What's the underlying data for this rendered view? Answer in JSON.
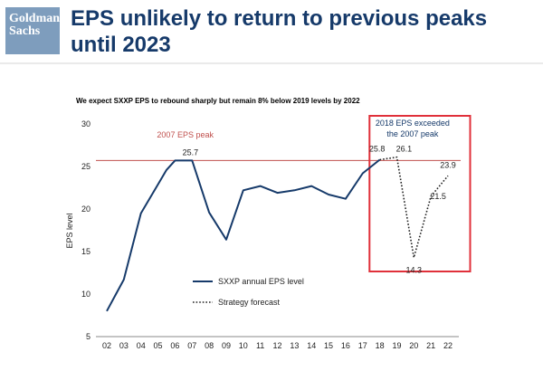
{
  "header": {
    "logo_line1": "Goldman",
    "logo_line2": "Sachs",
    "title": "EPS unlikely to return to previous peaks until 2023"
  },
  "chart_data": {
    "type": "line",
    "title": "We expect SXXP EPS to rebound sharply but remain 8% below 2019 levels by 2022",
    "ylabel": "EPS level",
    "xlabel": "",
    "ylim": [
      5,
      30
    ],
    "yticks": [
      5,
      10,
      15,
      20,
      25,
      30
    ],
    "x": [
      "02",
      "03",
      "04",
      "05",
      "06",
      "07",
      "08",
      "09",
      "10",
      "11",
      "12",
      "13",
      "14",
      "15",
      "16",
      "17",
      "18",
      "19",
      "20",
      "21",
      "22"
    ],
    "series": [
      {
        "name": "SXXP annual EPS level",
        "style": "solid",
        "color": "#163a6a",
        "points": [
          {
            "x": 2002,
            "y": 8.0
          },
          {
            "x": 2003,
            "y": 11.7
          },
          {
            "x": 2004,
            "y": 19.5
          },
          {
            "x": 2005,
            "y": 22.9
          },
          {
            "x": 2005.5,
            "y": 24.6
          },
          {
            "x": 2006,
            "y": 25.7
          },
          {
            "x": 2007,
            "y": 25.7
          },
          {
            "x": 2008,
            "y": 19.6
          },
          {
            "x": 2009,
            "y": 16.4
          },
          {
            "x": 2010,
            "y": 22.2
          },
          {
            "x": 2011,
            "y": 22.7
          },
          {
            "x": 2012,
            "y": 21.9
          },
          {
            "x": 2013,
            "y": 22.2
          },
          {
            "x": 2014,
            "y": 22.7
          },
          {
            "x": 2015,
            "y": 21.7
          },
          {
            "x": 2016,
            "y": 21.2
          },
          {
            "x": 2017,
            "y": 24.2
          },
          {
            "x": 2018,
            "y": 25.8
          }
        ]
      },
      {
        "name": "Strategy forecast",
        "style": "dotted",
        "color": "#222222",
        "points": [
          {
            "x": 2018,
            "y": 25.8
          },
          {
            "x": 2019,
            "y": 26.1
          },
          {
            "x": 2020,
            "y": 14.3
          },
          {
            "x": 2021,
            "y": 21.5
          },
          {
            "x": 2022,
            "y": 23.9
          }
        ]
      }
    ],
    "reference_line": {
      "y": 25.7,
      "label": "2007 EPS peak",
      "color": "#c0504d"
    },
    "data_labels": [
      {
        "x": 2006.9,
        "y": 25.7,
        "text": "25.7"
      },
      {
        "x": 2018,
        "y": 25.8,
        "text": "25.8"
      },
      {
        "x": 2019,
        "y": 26.1,
        "text": "26.1"
      },
      {
        "x": 2020,
        "y": 14.3,
        "text": "14.3"
      },
      {
        "x": 2021,
        "y": 21.5,
        "text": "21.5"
      },
      {
        "x": 2022,
        "y": 23.9,
        "text": "23.9"
      }
    ],
    "highlight_box": {
      "x_from": 2017.4,
      "x_to": 2023.3,
      "label_line1": "2018 EPS exceeded",
      "label_line2": "the 2007 peak",
      "color": "#e0303a"
    },
    "legend": {
      "position": "center-bottom"
    },
    "grid": false
  }
}
